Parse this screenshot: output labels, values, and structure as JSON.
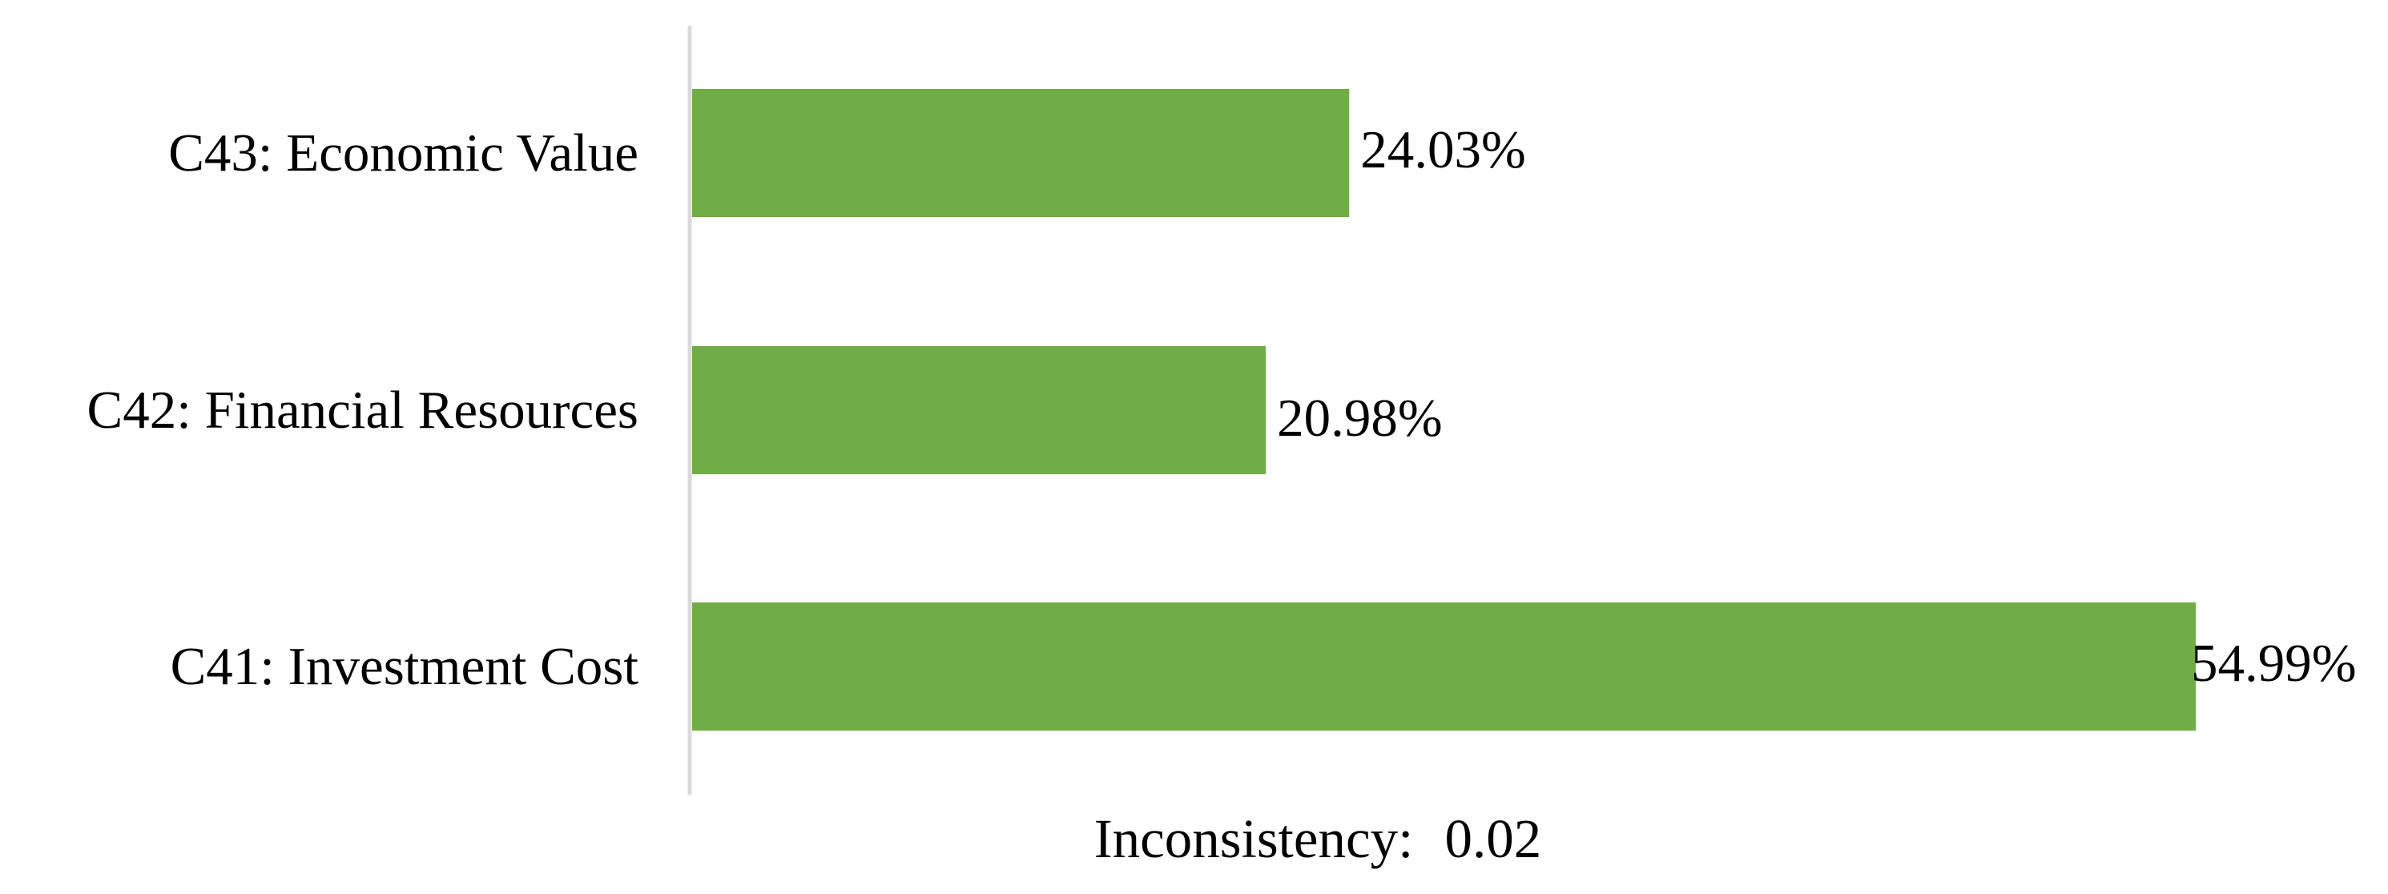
{
  "chart_data": {
    "type": "bar",
    "orientation": "horizontal",
    "categories": [
      "C43: Economic Value",
      "C42: Financial Resources",
      "C41: Investment Cost"
    ],
    "values": [
      24.03,
      20.98,
      54.99
    ],
    "value_labels": [
      "24.03%",
      "20.98%",
      "54.99%"
    ],
    "unit": "%",
    "xlim": [
      0,
      54.99
    ],
    "grid": false,
    "legend": "none",
    "colors": {
      "bar": "#70AD47",
      "axis": "#D9D9D9",
      "text": "#000000"
    }
  },
  "footer": {
    "inconsistency_label": "Inconsistency:",
    "inconsistency_value": "0.02"
  }
}
